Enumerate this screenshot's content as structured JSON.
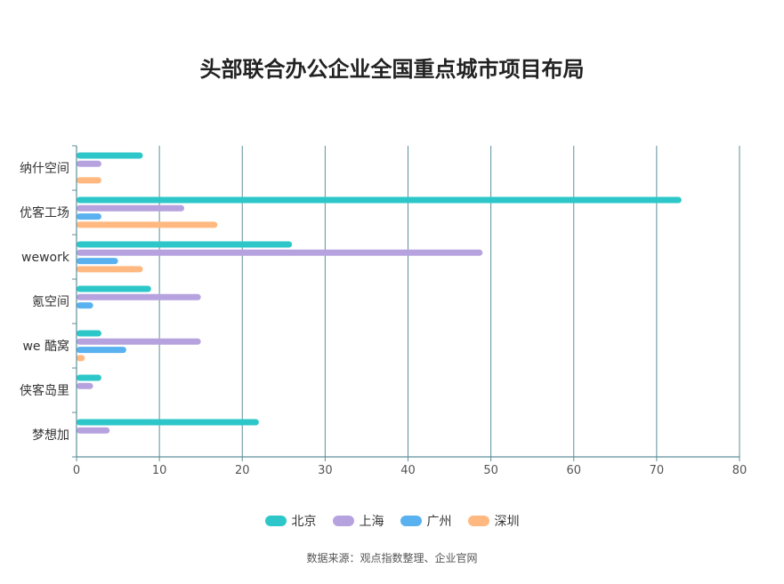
{
  "title": "头部联合办公企业全国重点城市项目布局",
  "source": "数据来源：观点指数整理、企业官网",
  "chart_data": {
    "type": "bar",
    "orientation": "horizontal",
    "title": "头部联合办公企业全国重点城市项目布局",
    "categories": [
      "纳什空间",
      "优客工场",
      "wework",
      "氪空间",
      "we 酷窝",
      "侠客岛里",
      "梦想加"
    ],
    "series": [
      {
        "name": "北京",
        "color": "#2ec7c9",
        "values": [
          8,
          73,
          26,
          9,
          3,
          3,
          22
        ]
      },
      {
        "name": "上海",
        "color": "#b6a2de",
        "values": [
          3,
          13,
          49,
          15,
          15,
          2,
          4
        ]
      },
      {
        "name": "广州",
        "color": "#5ab1ef",
        "values": [
          0,
          3,
          5,
          2,
          6,
          0,
          0
        ]
      },
      {
        "name": "深圳",
        "color": "#ffb980",
        "values": [
          3,
          17,
          8,
          0,
          1,
          0,
          0
        ]
      }
    ],
    "xlim": [
      0,
      80
    ],
    "xticks": [
      0,
      10,
      20,
      30,
      40,
      50,
      60,
      70,
      80
    ],
    "grid": true,
    "legend_position": "bottom"
  }
}
